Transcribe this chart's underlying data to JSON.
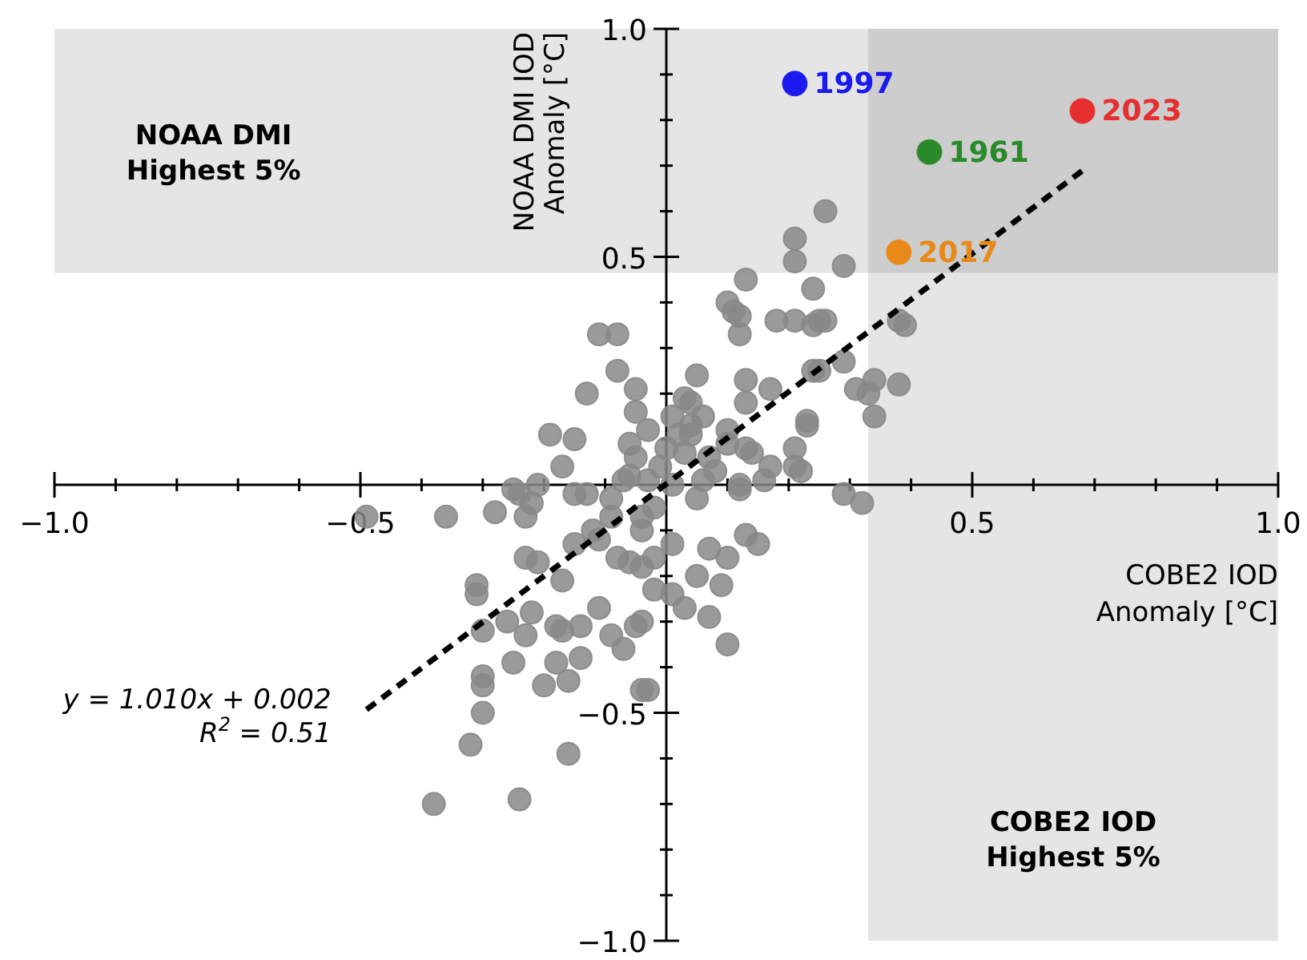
{
  "chart_data": {
    "type": "scatter",
    "xlabel": "COBE2 IOD\nAnomaly [°C]",
    "ylabel": "NOAA DMI IOD\nAnomaly [°C]",
    "xlim": [
      -1.0,
      1.0
    ],
    "ylim": [
      -1.0,
      1.0
    ],
    "xticks": [
      {
        "value": -1.0,
        "label": "−1.0"
      },
      {
        "value": -0.9,
        "label": null
      },
      {
        "value": -0.8,
        "label": null
      },
      {
        "value": -0.7,
        "label": null
      },
      {
        "value": -0.6,
        "label": null
      },
      {
        "value": -0.5,
        "label": "−0.5"
      },
      {
        "value": -0.4,
        "label": null
      },
      {
        "value": -0.3,
        "label": null
      },
      {
        "value": -0.2,
        "label": null
      },
      {
        "value": -0.1,
        "label": null
      },
      {
        "value": 0.1,
        "label": null
      },
      {
        "value": 0.2,
        "label": null
      },
      {
        "value": 0.3,
        "label": null
      },
      {
        "value": 0.4,
        "label": null
      },
      {
        "value": 0.5,
        "label": "0.5"
      },
      {
        "value": 0.6,
        "label": null
      },
      {
        "value": 0.7,
        "label": null
      },
      {
        "value": 0.8,
        "label": null
      },
      {
        "value": 0.9,
        "label": null
      },
      {
        "value": 1.0,
        "label": "1.0"
      }
    ],
    "yticks": [
      {
        "value": -1.0,
        "label": "−1.0"
      },
      {
        "value": -0.9,
        "label": null
      },
      {
        "value": -0.8,
        "label": null
      },
      {
        "value": -0.7,
        "label": null
      },
      {
        "value": -0.6,
        "label": null
      },
      {
        "value": -0.5,
        "label": "−0.5"
      },
      {
        "value": -0.4,
        "label": null
      },
      {
        "value": -0.3,
        "label": null
      },
      {
        "value": -0.2,
        "label": null
      },
      {
        "value": -0.1,
        "label": null
      },
      {
        "value": 0.1,
        "label": null
      },
      {
        "value": 0.2,
        "label": null
      },
      {
        "value": 0.3,
        "label": null
      },
      {
        "value": 0.4,
        "label": null
      },
      {
        "value": 0.5,
        "label": "0.5"
      },
      {
        "value": 0.6,
        "label": null
      },
      {
        "value": 0.7,
        "label": null
      },
      {
        "value": 0.8,
        "label": null
      },
      {
        "value": 0.9,
        "label": null
      },
      {
        "value": 1.0,
        "label": "1.0"
      }
    ],
    "bands": [
      {
        "axis": "y",
        "from": 0.465,
        "to": 1.0,
        "label": "NOAA DMI\nHighest 5%",
        "color": "#e5e5e5"
      },
      {
        "axis": "x",
        "from": 0.33,
        "to": 1.0,
        "label": "COBE2 IOD\nHighest 5%",
        "color": "#e5e5e5"
      }
    ],
    "annotations": [
      "y = 1.010x + 0.002",
      "R$^{2}$ = 0.51"
    ],
    "series": [
      {
        "type": "scatter",
        "marker": "circle",
        "color": "#888888",
        "x": [
          0.26,
          0.21,
          0.21,
          0.29,
          0.13,
          0.24,
          0.1,
          0.11,
          0.12,
          0.12,
          0.18,
          0.21,
          0.24,
          0.25,
          0.26,
          0.38,
          0.39,
          0.29,
          0.24,
          0.25,
          0.05,
          0.13,
          0.17,
          0.31,
          0.33,
          0.34,
          0.38,
          0.03,
          0.04,
          0.13,
          0.34,
          0.01,
          0.23,
          0.23,
          0.06,
          0.04,
          0.04,
          0.1,
          0.21,
          0.13,
          0.14,
          0.17,
          0.1,
          0.07,
          0.0,
          -0.01,
          0.21,
          0.22,
          0.16,
          0.12,
          0.29,
          0.01,
          -0.11,
          -0.08,
          -0.08,
          -0.05,
          -0.13,
          -0.05,
          -0.19,
          -0.15,
          -0.06,
          -0.17,
          -0.06,
          -0.21,
          -0.24,
          -0.49,
          -0.36,
          -0.28,
          -0.23,
          -0.22,
          -0.25,
          -0.15,
          -0.13,
          -0.31,
          -0.31,
          -0.23,
          -0.21,
          -0.17,
          -0.15,
          -0.12,
          -0.09,
          -0.08,
          -0.06,
          -0.11,
          -0.09,
          -0.07,
          -0.14,
          -0.17,
          -0.18,
          -0.22,
          -0.26,
          -0.3,
          -0.23,
          -0.25,
          -0.18,
          -0.14,
          -0.16,
          -0.2,
          -0.3,
          -0.3,
          -0.3,
          -0.32,
          -0.16,
          -0.38,
          -0.24,
          -0.05,
          -0.04,
          0.12,
          0.32,
          -0.04,
          -0.04,
          0.01,
          0.07,
          0.1,
          0.13,
          0.15,
          -0.02,
          -0.04,
          0.05,
          0.09,
          -0.02,
          0.01,
          0.03,
          0.07,
          -0.04,
          0.1,
          -0.03,
          -0.03,
          0.02,
          -0.05,
          -0.07,
          -0.03,
          0.06,
          0.08,
          0.05,
          -0.02,
          -0.09,
          -0.11,
          0.03
        ],
        "values": [
          0.6,
          0.54,
          0.49,
          0.48,
          0.45,
          0.43,
          0.4,
          0.38,
          0.37,
          0.33,
          0.36,
          0.36,
          0.35,
          0.36,
          0.36,
          0.36,
          0.35,
          0.27,
          0.25,
          0.25,
          0.24,
          0.23,
          0.21,
          0.21,
          0.2,
          0.23,
          0.22,
          0.19,
          0.18,
          0.18,
          0.15,
          0.15,
          0.14,
          0.13,
          0.15,
          0.13,
          0.11,
          0.12,
          0.08,
          0.08,
          0.07,
          0.04,
          0.09,
          0.06,
          0.08,
          0.04,
          0.04,
          0.03,
          0.01,
          0.0,
          -0.02,
          0.0,
          0.33,
          0.33,
          0.25,
          0.21,
          0.2,
          0.16,
          0.11,
          0.1,
          0.09,
          0.04,
          0.02,
          0.0,
          -0.02,
          -0.07,
          -0.07,
          -0.06,
          -0.07,
          -0.04,
          -0.01,
          -0.02,
          -0.02,
          -0.24,
          -0.22,
          -0.16,
          -0.17,
          -0.21,
          -0.13,
          -0.1,
          -0.07,
          -0.16,
          -0.17,
          -0.27,
          -0.33,
          -0.36,
          -0.31,
          -0.32,
          -0.31,
          -0.28,
          -0.3,
          -0.32,
          -0.33,
          -0.39,
          -0.39,
          -0.38,
          -0.43,
          -0.44,
          -0.42,
          -0.44,
          -0.5,
          -0.57,
          -0.59,
          -0.7,
          -0.69,
          -0.31,
          -0.45,
          -0.01,
          -0.04,
          -0.07,
          -0.1,
          -0.13,
          -0.14,
          -0.16,
          -0.11,
          -0.13,
          -0.16,
          -0.18,
          -0.2,
          -0.22,
          -0.23,
          -0.24,
          -0.27,
          -0.29,
          -0.3,
          -0.35,
          -0.45,
          0.12,
          0.11,
          0.06,
          0.01,
          0.01,
          0.01,
          0.03,
          -0.03,
          -0.05,
          -0.03,
          -0.12,
          0.07
        ]
      },
      {
        "type": "line",
        "marker": "none",
        "color": "#000000",
        "line_style": "dashed",
        "x": [
          -0.49,
          0.68
        ],
        "values": [
          -0.493,
          0.689
        ]
      },
      {
        "type": "scatter",
        "marker": "circle",
        "name": "1997",
        "color": "#1a1aee",
        "x": [
          0.21
        ],
        "values": [
          0.88
        ]
      },
      {
        "type": "scatter",
        "marker": "circle",
        "name": "1961",
        "color": "#2a8a2a",
        "x": [
          0.43
        ],
        "values": [
          0.73
        ]
      },
      {
        "type": "scatter",
        "marker": "circle",
        "name": "2023",
        "color": "#e52e2e",
        "x": [
          0.68
        ],
        "values": [
          0.82
        ]
      },
      {
        "type": "scatter",
        "marker": "circle",
        "name": "2017",
        "color": "#e88a1a",
        "x": [
          0.38
        ],
        "values": [
          0.51
        ]
      }
    ]
  }
}
